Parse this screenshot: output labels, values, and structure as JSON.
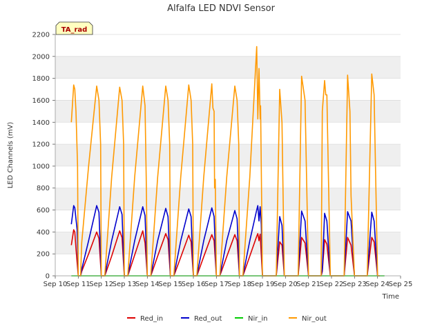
{
  "chart_data": {
    "type": "line",
    "title": "Alfalfa LED NDVI Sensor",
    "xlabel": "Time",
    "ylabel": "LED Channels (mV)",
    "ylim": [
      0,
      2200
    ],
    "yticks": [
      0,
      200,
      400,
      600,
      800,
      1000,
      1200,
      1400,
      1600,
      1800,
      2000,
      2200
    ],
    "xlim": [
      10,
      25
    ],
    "xticks": [
      {
        "day": 10,
        "label": "Sep 10"
      },
      {
        "day": 11,
        "label": "Sep 11"
      },
      {
        "day": 12,
        "label": "Sep 12"
      },
      {
        "day": 13,
        "label": "Sep 13"
      },
      {
        "day": 14,
        "label": "Sep 14"
      },
      {
        "day": 15,
        "label": "Sep 15"
      },
      {
        "day": 16,
        "label": "Sep 16"
      },
      {
        "day": 17,
        "label": "Sep 17"
      },
      {
        "day": 18,
        "label": "Sep 18"
      },
      {
        "day": 19,
        "label": "Sep 19"
      },
      {
        "day": 20,
        "label": "Sep 20"
      },
      {
        "day": 21,
        "label": "Sep 21"
      },
      {
        "day": 22,
        "label": "Sep 22"
      },
      {
        "day": 23,
        "label": "Sep 23"
      },
      {
        "day": 24,
        "label": "Sep 24"
      },
      {
        "day": 25,
        "label": "Sep 25"
      }
    ],
    "annotation": "TA_rad",
    "legend_position": "bottom-center",
    "series": [
      {
        "name": "Red_in",
        "color": "#dd0000",
        "x": [
          10.7,
          10.8,
          10.85,
          10.9,
          11.0,
          11.1,
          11.15,
          11.45,
          11.8,
          11.9,
          12.0,
          12.15,
          12.45,
          12.8,
          12.9,
          13.0,
          13.15,
          13.45,
          13.8,
          13.9,
          14.0,
          14.15,
          14.45,
          14.8,
          14.9,
          15.0,
          15.15,
          15.45,
          15.8,
          15.9,
          16.0,
          16.15,
          16.45,
          16.8,
          16.9,
          17.0,
          17.15,
          17.45,
          17.8,
          17.9,
          18.0,
          18.15,
          18.45,
          18.75,
          18.8,
          18.85,
          18.9,
          19.0,
          19.15,
          19.6,
          19.75,
          19.85,
          19.95,
          20.15,
          20.55,
          20.7,
          20.85,
          21.0,
          21.15,
          21.55,
          21.6,
          21.7,
          21.8,
          21.95,
          22.15,
          22.55,
          22.7,
          22.85,
          23.0,
          23.15,
          23.55,
          23.75,
          23.85,
          24.0,
          24.1
        ],
        "y": [
          280,
          420,
          400,
          250,
          0,
          0,
          40,
          200,
          400,
          340,
          0,
          0,
          180,
          410,
          350,
          0,
          0,
          190,
          410,
          300,
          0,
          0,
          180,
          385,
          330,
          0,
          0,
          170,
          370,
          310,
          0,
          0,
          175,
          375,
          320,
          0,
          0,
          175,
          375,
          320,
          0,
          0,
          180,
          360,
          385,
          320,
          380,
          0,
          0,
          0,
          310,
          280,
          0,
          0,
          0,
          350,
          300,
          0,
          0,
          0,
          40,
          330,
          290,
          0,
          0,
          0,
          350,
          280,
          0,
          0,
          0,
          350,
          310,
          0,
          0
        ]
      },
      {
        "name": "Red_out",
        "color": "#0000cc",
        "x": [
          10.7,
          10.8,
          10.85,
          10.95,
          11.0,
          11.1,
          11.15,
          11.45,
          11.8,
          11.9,
          12.0,
          12.15,
          12.45,
          12.8,
          12.9,
          13.0,
          13.15,
          13.45,
          13.8,
          13.9,
          14.0,
          14.15,
          14.45,
          14.8,
          14.9,
          15.0,
          15.15,
          15.45,
          15.8,
          15.9,
          16.0,
          16.15,
          16.45,
          16.8,
          16.9,
          17.0,
          17.15,
          17.45,
          17.8,
          17.9,
          18.0,
          18.15,
          18.45,
          18.75,
          18.8,
          18.85,
          18.9,
          18.95,
          19.0,
          19.15,
          19.6,
          19.75,
          19.85,
          19.95,
          20.15,
          20.55,
          20.7,
          20.85,
          21.0,
          21.15,
          21.55,
          21.6,
          21.7,
          21.8,
          21.95,
          22.15,
          22.55,
          22.7,
          22.85,
          23.0,
          23.15,
          23.55,
          23.75,
          23.85,
          24.0,
          24.1
        ],
        "y": [
          470,
          640,
          620,
          420,
          0,
          0,
          60,
          320,
          640,
          580,
          0,
          0,
          320,
          630,
          560,
          0,
          0,
          320,
          630,
          550,
          0,
          0,
          320,
          615,
          540,
          0,
          0,
          320,
          610,
          540,
          0,
          0,
          320,
          620,
          540,
          0,
          0,
          320,
          595,
          520,
          0,
          0,
          320,
          600,
          640,
          500,
          630,
          470,
          0,
          0,
          0,
          540,
          460,
          0,
          0,
          0,
          590,
          500,
          0,
          0,
          0,
          60,
          570,
          500,
          0,
          0,
          0,
          585,
          500,
          0,
          0,
          0,
          580,
          500,
          0,
          0
        ]
      },
      {
        "name": "Nir_in",
        "color": "#00cc00",
        "x": [
          10.7,
          24.3
        ],
        "y": [
          0,
          0
        ]
      },
      {
        "name": "Nir_out",
        "color": "#ff9900",
        "x": [
          10.7,
          10.8,
          10.85,
          10.9,
          10.97,
          11.0,
          11.1,
          11.15,
          11.45,
          11.8,
          11.9,
          11.97,
          12.0,
          12.15,
          12.45,
          12.8,
          12.9,
          12.97,
          13.0,
          13.15,
          13.45,
          13.8,
          13.9,
          13.95,
          13.97,
          14.0,
          14.15,
          14.45,
          14.8,
          14.9,
          14.97,
          15.0,
          15.15,
          15.45,
          15.8,
          15.9,
          15.97,
          16.0,
          16.15,
          16.45,
          16.8,
          16.85,
          16.9,
          16.92,
          16.95,
          17.0,
          17.15,
          17.45,
          17.8,
          17.9,
          17.97,
          18.0,
          18.15,
          18.45,
          18.75,
          18.8,
          18.85,
          18.9,
          18.92,
          18.95,
          19.0,
          19.15,
          19.6,
          19.75,
          19.85,
          19.95,
          20.15,
          20.55,
          20.7,
          20.85,
          21.0,
          21.15,
          21.55,
          21.6,
          21.7,
          21.75,
          21.8,
          21.95,
          22.15,
          22.55,
          22.7,
          22.8,
          22.85,
          23.0,
          23.15,
          23.55,
          23.75,
          23.85,
          24.0,
          24.1
        ],
        "y": [
          1400,
          1740,
          1700,
          1500,
          1000,
          0,
          0,
          300,
          1000,
          1730,
          1600,
          1200,
          0,
          0,
          900,
          1720,
          1600,
          1200,
          0,
          0,
          900,
          1730,
          1550,
          900,
          600,
          0,
          0,
          900,
          1730,
          1600,
          1200,
          0,
          0,
          900,
          1740,
          1600,
          1200,
          0,
          0,
          900,
          1750,
          1530,
          1500,
          800,
          880,
          0,
          0,
          900,
          1730,
          1600,
          1200,
          0,
          0,
          900,
          2090,
          1430,
          1890,
          1430,
          1550,
          1000,
          0,
          0,
          0,
          1700,
          1400,
          0,
          0,
          0,
          1820,
          1600,
          0,
          0,
          0,
          1500,
          1780,
          1650,
          1650,
          0,
          0,
          0,
          1830,
          1500,
          730,
          0,
          0,
          0,
          1840,
          1650,
          0,
          0
        ]
      }
    ]
  }
}
